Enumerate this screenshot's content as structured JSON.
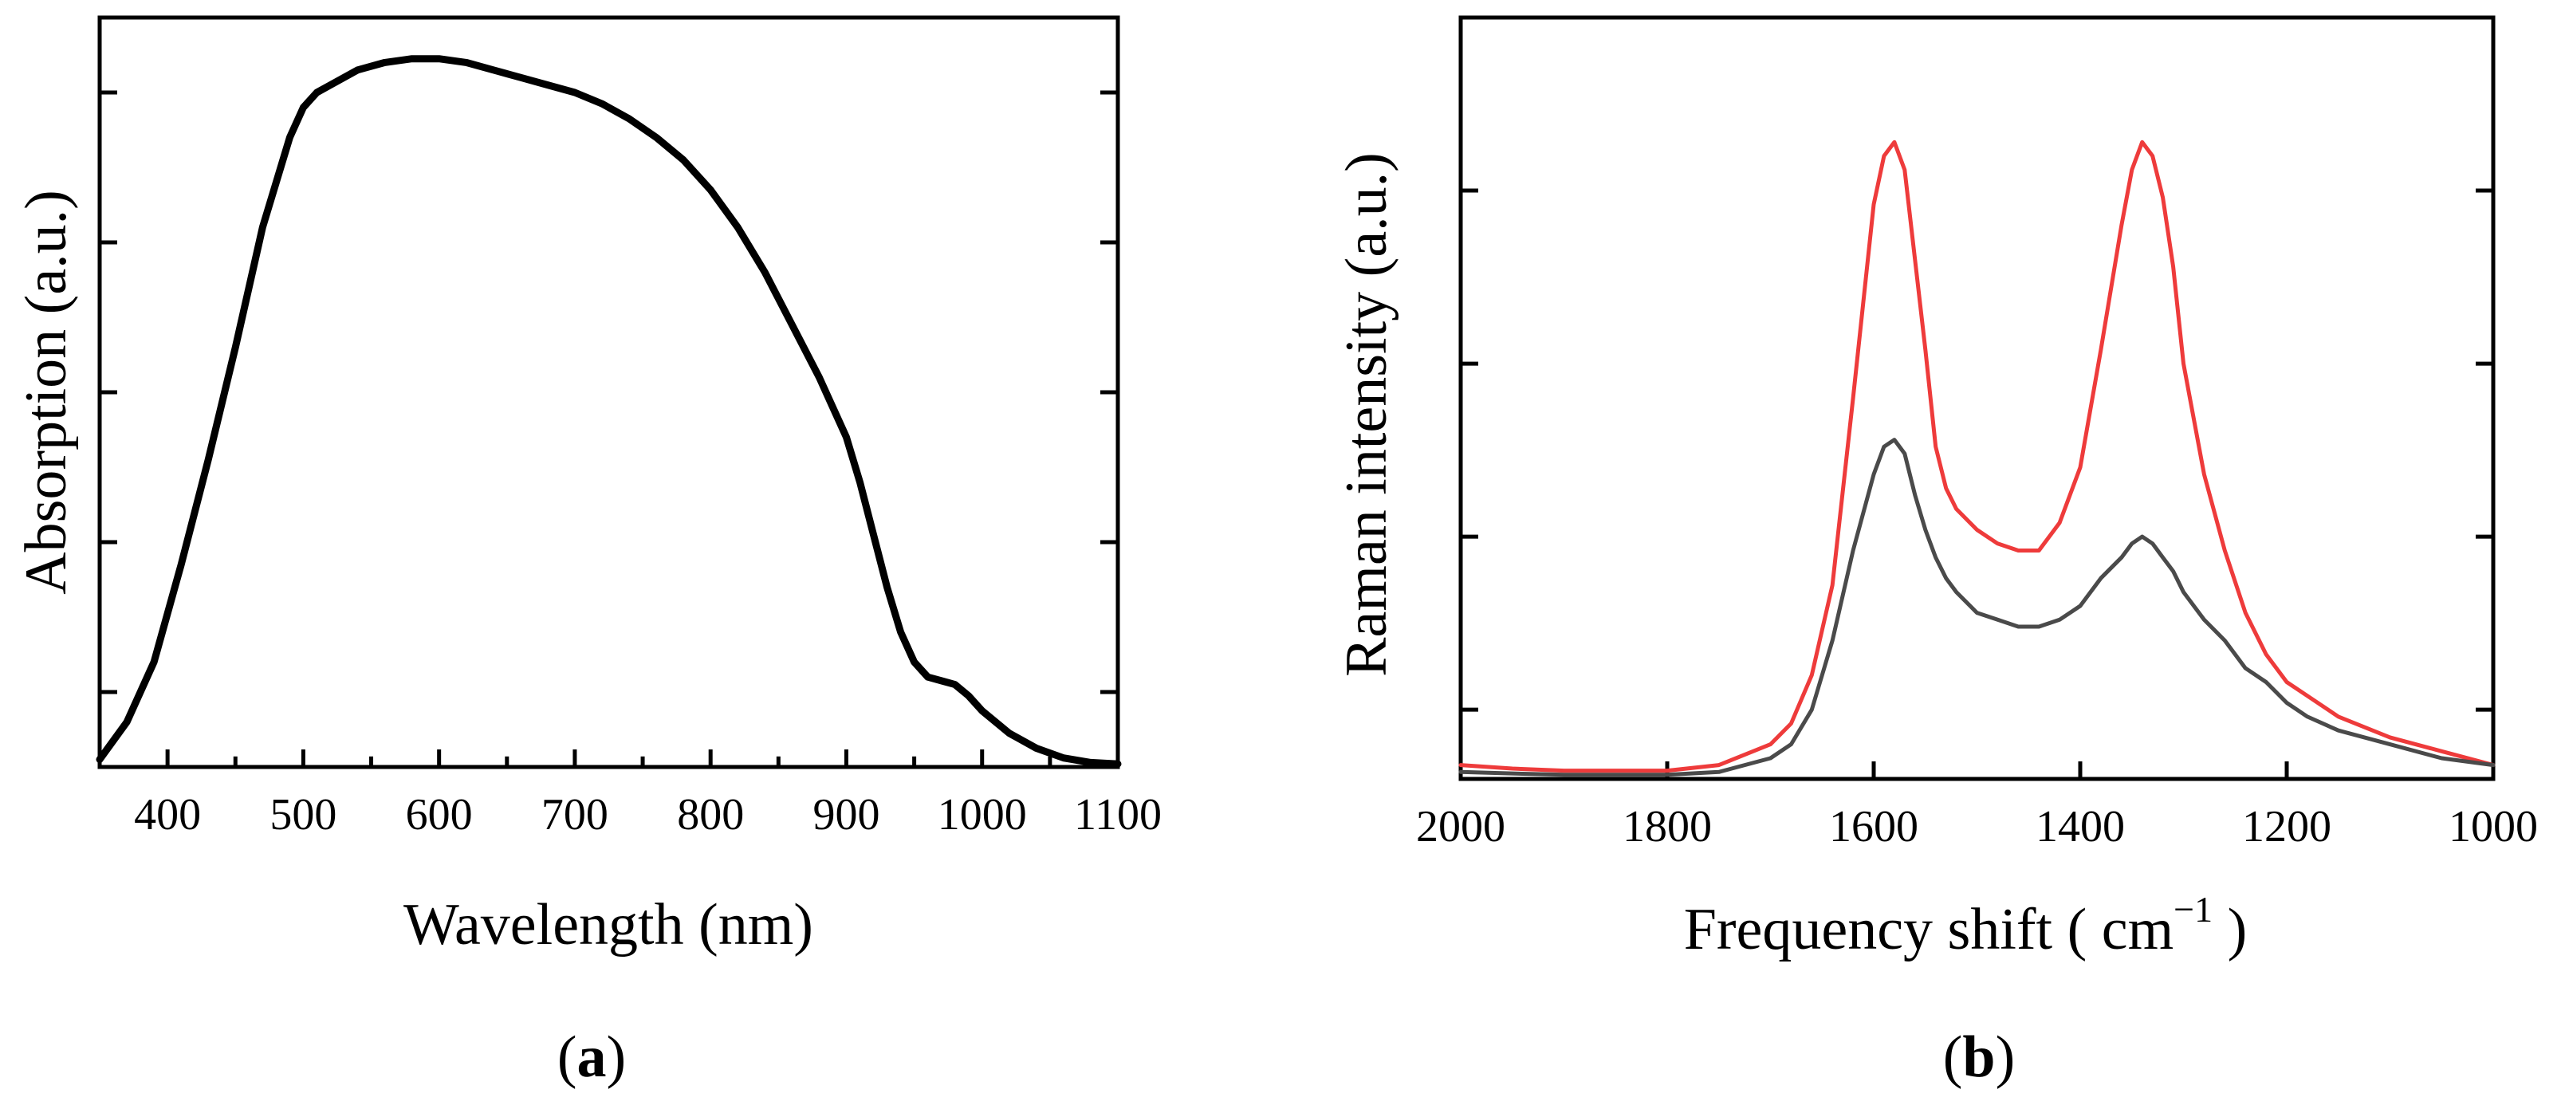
{
  "chart_data": [
    {
      "type": "line",
      "panel_label": "a",
      "xlabel": "Wavelength (nm)",
      "ylabel": "Absorption (a.u.)",
      "xlim": [
        350,
        1100
      ],
      "ylim": [
        0,
        1.0
      ],
      "x_ticks": [
        400,
        500,
        600,
        700,
        800,
        900,
        1000,
        1100
      ],
      "y_ticks": [
        0.1,
        0.3,
        0.5,
        0.7,
        0.9
      ],
      "y_tick_labels_shown": false,
      "series": [
        {
          "name": "Absorption",
          "color": "#000000",
          "x": [
            350,
            370,
            390,
            410,
            430,
            450,
            470,
            490,
            500,
            510,
            520,
            540,
            560,
            580,
            600,
            620,
            640,
            660,
            680,
            700,
            720,
            740,
            760,
            780,
            800,
            820,
            840,
            860,
            880,
            900,
            910,
            920,
            930,
            940,
            950,
            960,
            970,
            980,
            990,
            1000,
            1020,
            1040,
            1060,
            1080,
            1100
          ],
          "values": [
            0.01,
            0.06,
            0.14,
            0.27,
            0.41,
            0.56,
            0.72,
            0.84,
            0.88,
            0.9,
            0.91,
            0.93,
            0.94,
            0.945,
            0.945,
            0.94,
            0.93,
            0.92,
            0.91,
            0.9,
            0.885,
            0.865,
            0.84,
            0.81,
            0.77,
            0.72,
            0.66,
            0.59,
            0.52,
            0.44,
            0.38,
            0.31,
            0.24,
            0.18,
            0.14,
            0.12,
            0.115,
            0.11,
            0.095,
            0.075,
            0.045,
            0.025,
            0.012,
            0.006,
            0.004
          ]
        }
      ]
    },
    {
      "type": "line",
      "panel_label": "b",
      "xlabel": "Frequency shift ( cm",
      "xlabel_superscript": "−1",
      "xlabel_suffix": " )",
      "ylabel": "Raman intensity (a.u.)",
      "xlim": [
        2000,
        1000
      ],
      "ylim": [
        0,
        1.1
      ],
      "x_ticks": [
        2000,
        1800,
        1600,
        1400,
        1200,
        1000
      ],
      "y_ticks": [
        0.1,
        0.35,
        0.6,
        0.85
      ],
      "y_tick_labels_shown": false,
      "series": [
        {
          "name": "red",
          "color": "#ee3b3b",
          "x": [
            2000,
            1950,
            1900,
            1850,
            1800,
            1750,
            1700,
            1680,
            1660,
            1640,
            1620,
            1600,
            1590,
            1580,
            1570,
            1560,
            1550,
            1540,
            1530,
            1520,
            1500,
            1480,
            1460,
            1440,
            1420,
            1400,
            1380,
            1360,
            1350,
            1340,
            1330,
            1320,
            1310,
            1300,
            1280,
            1260,
            1240,
            1220,
            1200,
            1180,
            1150,
            1100,
            1050,
            1000
          ],
          "values": [
            0.02,
            0.015,
            0.012,
            0.012,
            0.012,
            0.02,
            0.05,
            0.08,
            0.15,
            0.28,
            0.55,
            0.83,
            0.9,
            0.92,
            0.88,
            0.75,
            0.62,
            0.48,
            0.42,
            0.39,
            0.36,
            0.34,
            0.33,
            0.33,
            0.37,
            0.45,
            0.62,
            0.8,
            0.88,
            0.92,
            0.9,
            0.84,
            0.74,
            0.6,
            0.44,
            0.33,
            0.24,
            0.18,
            0.14,
            0.12,
            0.09,
            0.06,
            0.04,
            0.02
          ]
        },
        {
          "name": "gray",
          "color": "#4a4a4a",
          "x": [
            2000,
            1950,
            1900,
            1850,
            1800,
            1750,
            1700,
            1680,
            1660,
            1640,
            1620,
            1600,
            1590,
            1580,
            1570,
            1560,
            1550,
            1540,
            1530,
            1520,
            1500,
            1480,
            1460,
            1440,
            1420,
            1400,
            1380,
            1360,
            1350,
            1340,
            1330,
            1320,
            1310,
            1300,
            1280,
            1260,
            1240,
            1220,
            1200,
            1180,
            1150,
            1100,
            1050,
            1000
          ],
          "values": [
            0.01,
            0.008,
            0.006,
            0.006,
            0.006,
            0.01,
            0.03,
            0.05,
            0.1,
            0.2,
            0.33,
            0.44,
            0.48,
            0.49,
            0.47,
            0.41,
            0.36,
            0.32,
            0.29,
            0.27,
            0.24,
            0.23,
            0.22,
            0.22,
            0.23,
            0.25,
            0.29,
            0.32,
            0.34,
            0.35,
            0.34,
            0.32,
            0.3,
            0.27,
            0.23,
            0.2,
            0.16,
            0.14,
            0.11,
            0.09,
            0.07,
            0.05,
            0.03,
            0.02
          ]
        }
      ]
    }
  ]
}
